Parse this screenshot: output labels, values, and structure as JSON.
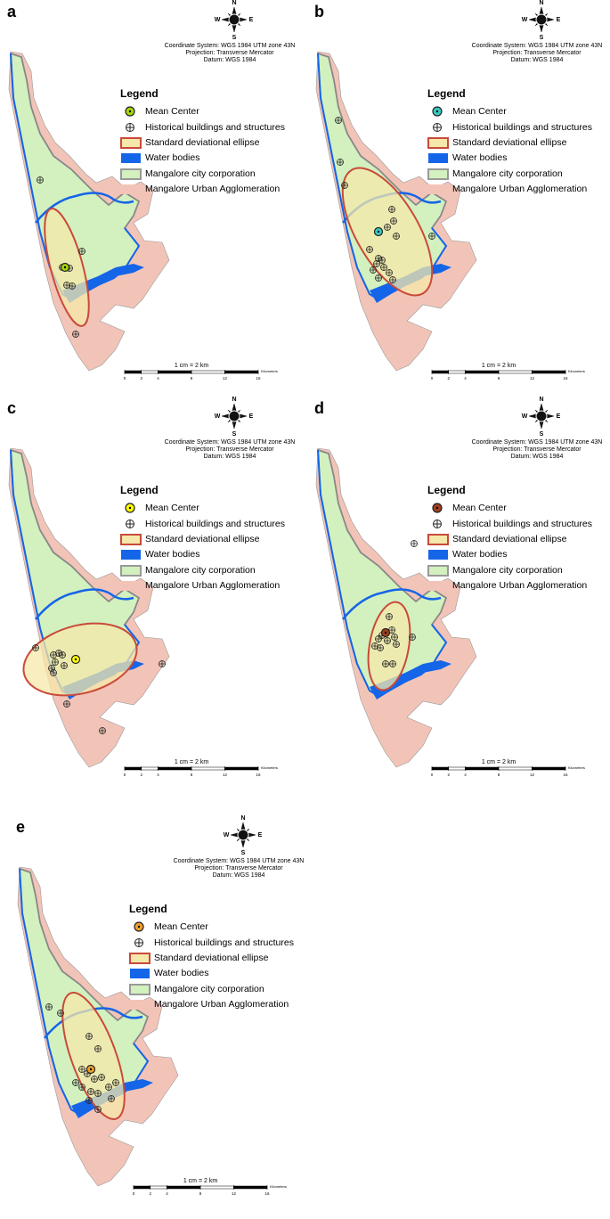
{
  "frame": {
    "coordinate_system": "Coordinate System: WGS 1984 UTM zone 43N",
    "projection": "Projection: Transverse Mercator",
    "datum": "Datum: WGS 1984",
    "compass": {
      "n": "N",
      "s": "S",
      "e": "E",
      "w": "W"
    },
    "legend_title": "Legend",
    "legend_items": [
      "Mean Center",
      "Historical buildings and structures",
      "Standard deviational ellipse",
      "Water bodies",
      "Mangalore city corporation",
      "Mangalore Urban Agglomeration"
    ],
    "scale_text": "1 cm = 2 km",
    "scale_ticks": [
      0,
      2,
      4,
      8,
      12,
      16
    ],
    "scale_unit": "Kilometers"
  },
  "panels": [
    {
      "label": "a",
      "mean_center_color": "#a6d608"
    },
    {
      "label": "b",
      "mean_center_color": "#3cc8c0"
    },
    {
      "label": "c",
      "mean_center_color": "#ffff00"
    },
    {
      "label": "d",
      "mean_center_color": "#a0401e"
    },
    {
      "label": "e",
      "mean_center_color": "#f0a030"
    }
  ]
}
